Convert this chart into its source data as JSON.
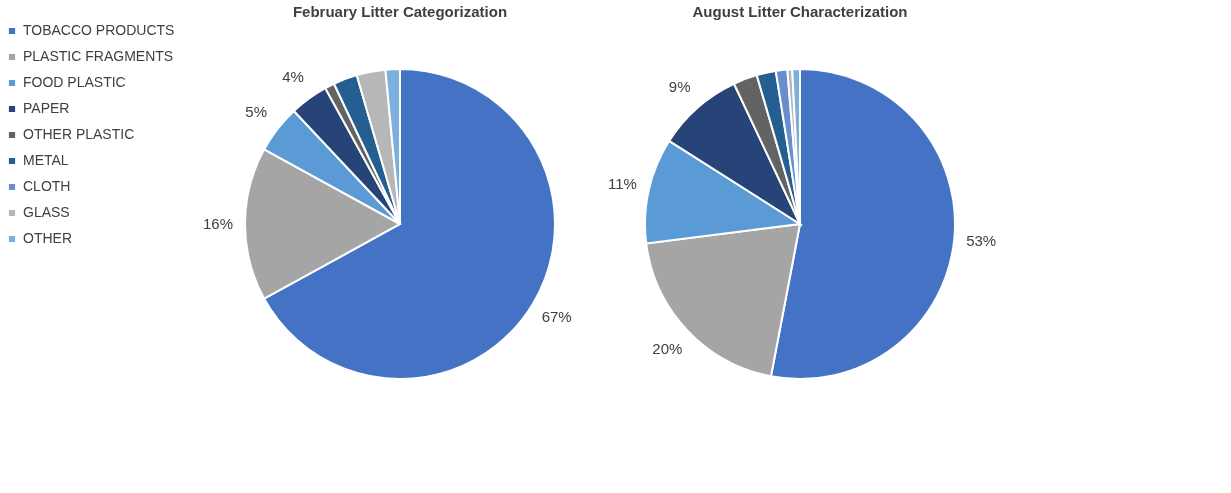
{
  "chart_data": [
    {
      "type": "pie",
      "title": "February Litter Categorization",
      "legend": "left",
      "categories": [
        "TOBACCO PRODUCTS",
        "PLASTIC FRAGMENTS",
        "FOOD PLASTIC",
        "PAPER",
        "OTHER PLASTIC",
        "METAL",
        "CLOTH",
        "GLASS",
        "OTHER"
      ],
      "values": [
        67,
        16,
        5,
        4,
        1,
        2.5,
        null,
        3,
        1.5
      ],
      "colors": [
        "#4472c4",
        "#a5a5a5",
        "#5b9bd5",
        "#264478",
        "#636363",
        "#255e91",
        "#698ed0",
        "#b7b7b7",
        "#7cafdd"
      ],
      "value_labels": [
        "67%",
        "16%",
        "5%",
        "4%",
        null,
        null,
        null,
        null,
        null
      ]
    },
    {
      "type": "pie",
      "title": "August Litter Characterization",
      "categories": [
        null,
        null,
        null,
        null,
        null,
        null,
        null,
        null,
        null
      ],
      "values": [
        53,
        20,
        11,
        9,
        2.5,
        2,
        1.2,
        0.5,
        0.8
      ],
      "colors": [
        "#4472c4",
        "#a5a5a5",
        "#5b9bd5",
        "#264478",
        "#636363",
        "#255e91",
        "#698ed0",
        "#b7b7b7",
        "#7cafdd"
      ],
      "value_labels": [
        "53%",
        "20%",
        "11%",
        "9%",
        null,
        null,
        null,
        null,
        null
      ]
    }
  ]
}
